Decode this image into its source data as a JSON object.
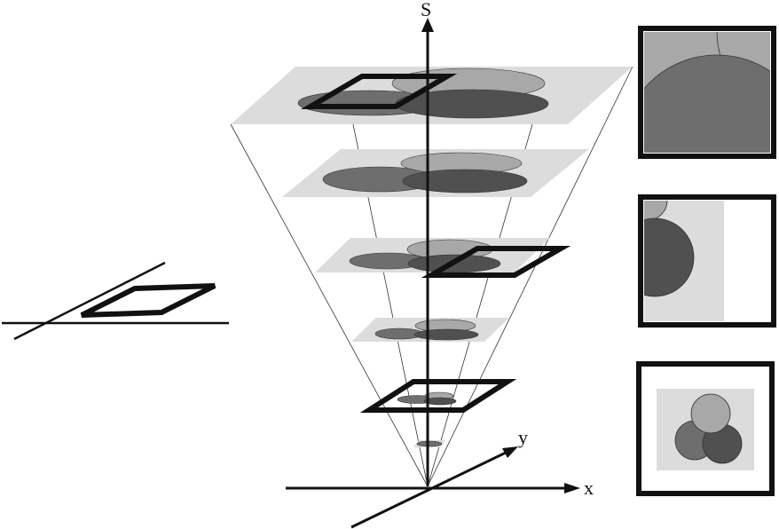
{
  "axes": {
    "scale_label": "S",
    "x_label": "x",
    "y_label": "y"
  },
  "colors": {
    "plane_fill": "#dcdcdc",
    "light_blob": "#a8a8a8",
    "mid_blob": "#6e6e6e",
    "dark_blob": "#505050",
    "frame": "#111111",
    "background": "#ffffff"
  },
  "stack": {
    "plane_count": 6,
    "window_frames_on_levels": [
      "top",
      "middle",
      "lower"
    ]
  },
  "zoom_panels": [
    {
      "name": "coarse-scale-view",
      "plane": "top"
    },
    {
      "name": "middle-scale-view",
      "plane": "middle"
    },
    {
      "name": "fine-scale-view",
      "plane": "lower"
    }
  ]
}
